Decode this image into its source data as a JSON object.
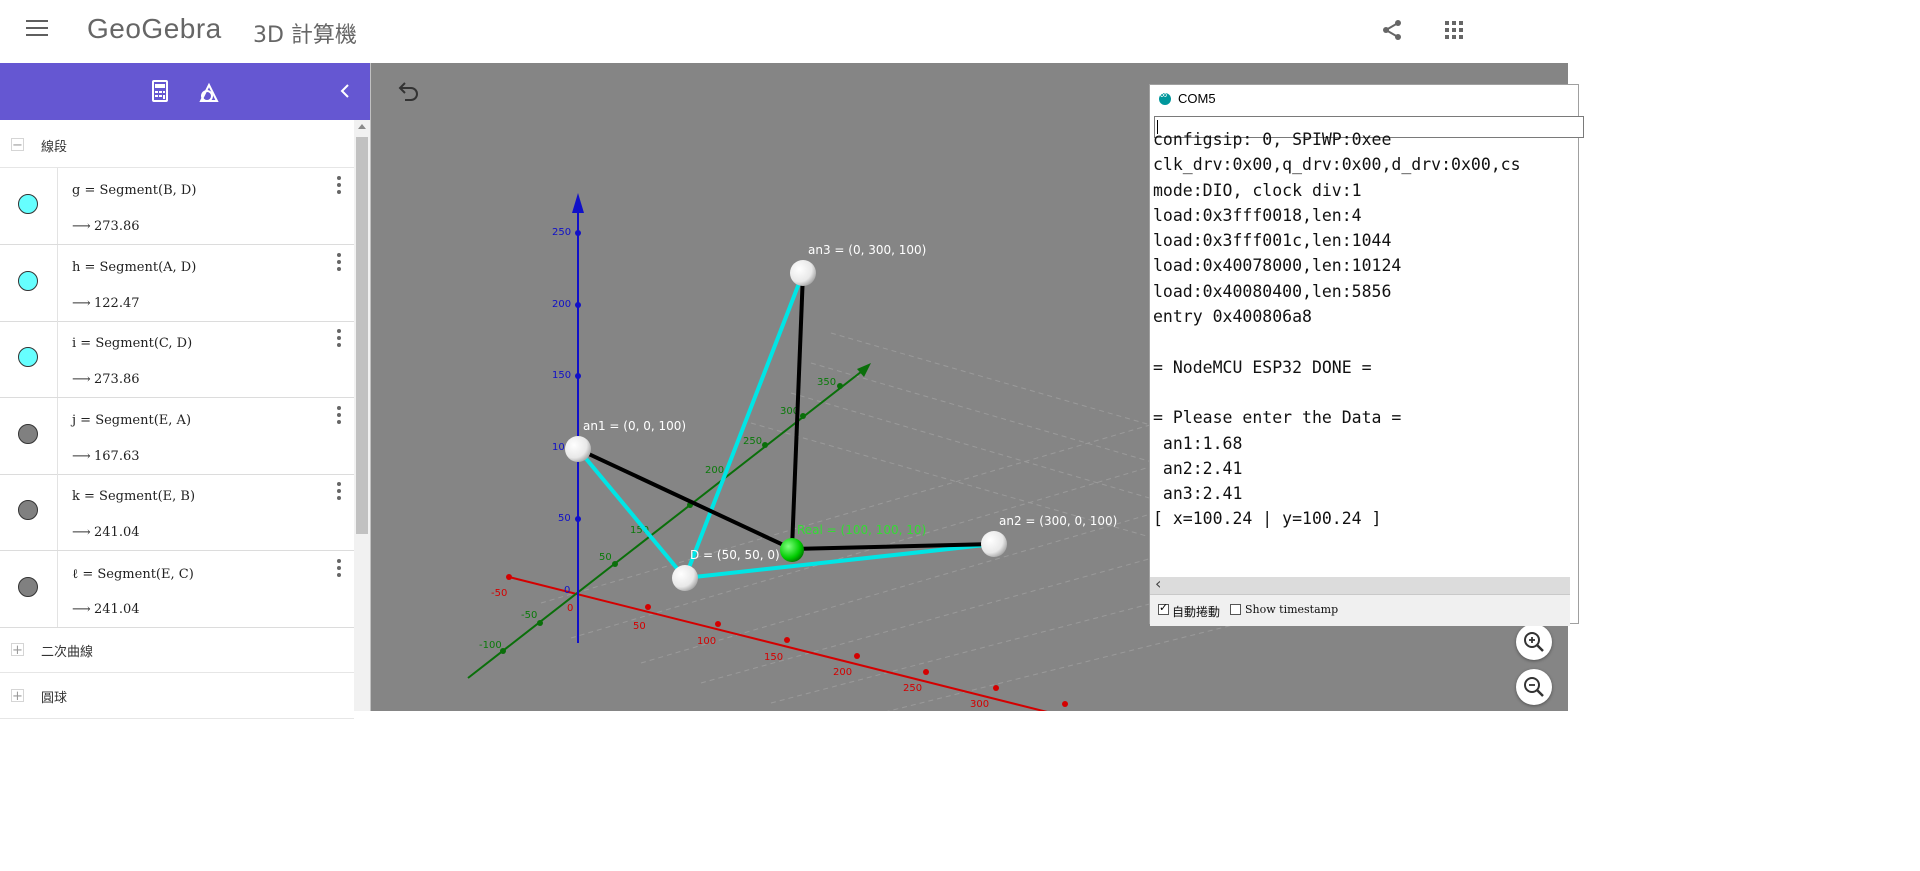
{
  "header": {
    "logo": "GeoGebra",
    "app_name": "3D 計算機"
  },
  "algebra": {
    "groups": {
      "segments": "線段",
      "conics": "二次曲線",
      "spheres": "圓球"
    },
    "rows": [
      {
        "def": "g = Segment(B, D)",
        "value": "273.86",
        "color": "#66ffff"
      },
      {
        "def": "h = Segment(A, D)",
        "value": "122.47",
        "color": "#66ffff"
      },
      {
        "def": "i = Segment(C, D)",
        "value": "273.86",
        "color": "#66ffff"
      },
      {
        "def": "j = Segment(E, A)",
        "value": "167.63",
        "color": "#808080"
      },
      {
        "def": "k = Segment(E, B)",
        "value": "241.04",
        "color": "#808080"
      },
      {
        "def": "ℓ = Segment(E, C)",
        "value": "241.04",
        "color": "#808080"
      }
    ],
    "arrow": "⟶"
  },
  "view3d": {
    "labels": {
      "an1": "an1 = (0, 0, 100)",
      "an2": "an2 = (300, 0, 100)",
      "an3": "an3 = (0, 300, 100)",
      "D": "D = (50, 50, 0)",
      "real": "Real = (100, 100, 10)"
    },
    "z_ticks": [
      "250",
      "200",
      "150",
      "100",
      "50",
      "0"
    ],
    "y_ticks": [
      "350",
      "300",
      "250",
      "200",
      "150",
      "100",
      "50",
      "-50",
      "-100"
    ],
    "x_ticks": [
      "-50",
      "0",
      "50",
      "100",
      "150",
      "200",
      "250",
      "300"
    ]
  },
  "serial_monitor": {
    "title": "COM5",
    "lines": [
      "configsip: 0, SPIWP:0xee",
      "clk_drv:0x00,q_drv:0x00,d_drv:0x00,cs",
      "mode:DIO, clock div:1",
      "load:0x3fff0018,len:4",
      "load:0x3fff001c,len:1044",
      "load:0x40078000,len:10124",
      "load:0x40080400,len:5856",
      "entry 0x400806a8",
      "",
      "= NodeMCU ESP32 DONE =",
      "",
      "= Please enter the Data =",
      " an1:1.68",
      " an2:2.41",
      " an3:2.41",
      "[ x=100.24 | y=100.24 ]"
    ],
    "autoscroll_label": "自動捲動",
    "timestamp_label": "Show timestamp"
  }
}
